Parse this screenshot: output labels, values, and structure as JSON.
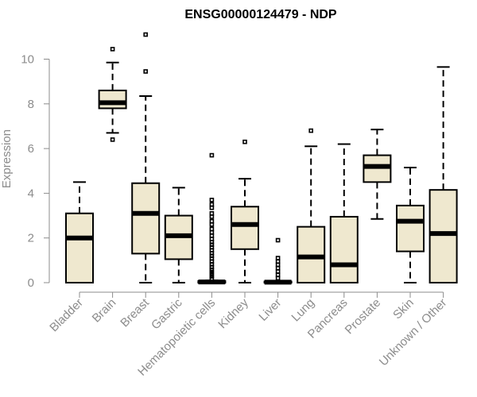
{
  "chart_data": {
    "type": "boxplot",
    "title": "ENSG00000124479 - NDP",
    "xlabel": "",
    "ylabel": "Expression",
    "ylim": [
      0,
      11.2
    ],
    "yticks": [
      0,
      2,
      4,
      6,
      8,
      10
    ],
    "colors": {
      "box_fill": "#efe8cf",
      "axis": "#8c8c8c",
      "stroke": "#000000"
    },
    "categories": [
      "Bladder",
      "Brain",
      "Breast",
      "Gastric",
      "Hematopoietic cells",
      "Kidney",
      "Liver",
      "Lung",
      "Pancreas",
      "Prostate",
      "Skin",
      "Unknown / Other"
    ],
    "series": [
      {
        "name": "Bladder",
        "q1": 0,
        "median": 2.0,
        "q3": 3.1,
        "low": 0,
        "high": 4.5,
        "outliers": []
      },
      {
        "name": "Brain",
        "q1": 7.8,
        "median": 8.05,
        "q3": 8.6,
        "low": 6.7,
        "high": 9.85,
        "outliers": [
          6.4,
          10.45
        ]
      },
      {
        "name": "Breast",
        "q1": 1.3,
        "median": 3.1,
        "q3": 4.45,
        "low": 0,
        "high": 8.35,
        "outliers": [
          9.45,
          11.1
        ]
      },
      {
        "name": "Gastric",
        "q1": 1.05,
        "median": 2.1,
        "q3": 3.0,
        "low": 0,
        "high": 4.25,
        "outliers": []
      },
      {
        "name": "Hematopoietic cells",
        "q1": 0,
        "median": 0.03,
        "q3": 0.07,
        "low": 0,
        "high": 0.1,
        "outliers": [
          0.18,
          0.28,
          0.38,
          0.48,
          0.58,
          0.7,
          0.82,
          0.95,
          1.08,
          1.2,
          1.32,
          1.45,
          1.58,
          1.7,
          1.82,
          1.95,
          2.1,
          2.25,
          2.4,
          2.6,
          2.75,
          2.95,
          3.1,
          3.35,
          3.5,
          3.7,
          5.7
        ]
      },
      {
        "name": "Kidney",
        "q1": 1.5,
        "median": 2.6,
        "q3": 3.4,
        "low": 0,
        "high": 4.65,
        "outliers": [
          6.3
        ]
      },
      {
        "name": "Liver",
        "q1": 0,
        "median": 0.02,
        "q3": 0.05,
        "low": 0,
        "high": 0.08,
        "outliers": [
          0.2,
          0.35,
          0.5,
          0.65,
          0.8,
          0.95,
          1.1,
          1.9
        ]
      },
      {
        "name": "Lung",
        "q1": 0,
        "median": 1.15,
        "q3": 2.5,
        "low": 0,
        "high": 6.1,
        "outliers": [
          6.8
        ]
      },
      {
        "name": "Pancreas",
        "q1": 0,
        "median": 0.8,
        "q3": 2.95,
        "low": 0,
        "high": 6.2,
        "outliers": []
      },
      {
        "name": "Prostate",
        "q1": 4.5,
        "median": 5.2,
        "q3": 5.7,
        "low": 2.85,
        "high": 6.85,
        "outliers": []
      },
      {
        "name": "Skin",
        "q1": 1.4,
        "median": 2.75,
        "q3": 3.45,
        "low": 0,
        "high": 5.15,
        "outliers": []
      },
      {
        "name": "Unknown / Other",
        "q1": 0,
        "median": 2.2,
        "q3": 4.15,
        "low": 0,
        "high": 9.65,
        "outliers": []
      }
    ]
  }
}
